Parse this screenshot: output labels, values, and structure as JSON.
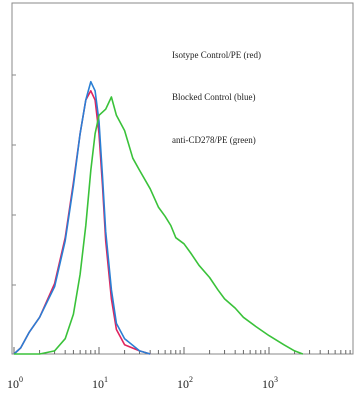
{
  "chart_data": {
    "type": "line",
    "title": "",
    "xlabel": "",
    "ylabel": "",
    "x_scale": "log",
    "xlim": [
      1,
      10000
    ],
    "ylim": [
      0,
      1
    ],
    "x_ticks": [
      {
        "base": "10",
        "exp": "0",
        "value": 1
      },
      {
        "base": "10",
        "exp": "1",
        "value": 10
      },
      {
        "base": "10",
        "exp": "2",
        "value": 100
      },
      {
        "base": "10",
        "exp": "3",
        "value": 1000
      }
    ],
    "legend": [
      "Isotype Control/PE (red)",
      "Blocked Control (blue)",
      "anti-CD278/PE (green)"
    ],
    "legend_placement": "top-right",
    "series": [
      {
        "name": "Isotype Control/PE (red)",
        "color": "#e0245e",
        "points": [
          [
            1,
            0.0
          ],
          [
            1.2,
            0.02
          ],
          [
            1.5,
            0.07
          ],
          [
            2,
            0.12
          ],
          [
            3,
            0.23
          ],
          [
            4,
            0.38
          ],
          [
            5,
            0.56
          ],
          [
            6,
            0.72
          ],
          [
            7,
            0.83
          ],
          [
            8,
            0.86
          ],
          [
            9,
            0.83
          ],
          [
            10,
            0.72
          ],
          [
            11,
            0.55
          ],
          [
            12,
            0.37
          ],
          [
            14,
            0.18
          ],
          [
            16,
            0.08
          ],
          [
            20,
            0.03
          ],
          [
            30,
            0.01
          ],
          [
            40,
            0.0
          ]
        ]
      },
      {
        "name": "Blocked Control (blue)",
        "color": "#2a7fd4",
        "points": [
          [
            1,
            0.0
          ],
          [
            1.2,
            0.02
          ],
          [
            1.5,
            0.07
          ],
          [
            2,
            0.12
          ],
          [
            3,
            0.22
          ],
          [
            4,
            0.37
          ],
          [
            5,
            0.55
          ],
          [
            6,
            0.72
          ],
          [
            7,
            0.83
          ],
          [
            8,
            0.89
          ],
          [
            9,
            0.86
          ],
          [
            10,
            0.76
          ],
          [
            11,
            0.58
          ],
          [
            12,
            0.4
          ],
          [
            14,
            0.21
          ],
          [
            16,
            0.1
          ],
          [
            20,
            0.05
          ],
          [
            30,
            0.01
          ],
          [
            40,
            0.0
          ]
        ]
      },
      {
        "name": "anti-CD278/PE (green)",
        "color": "#3ac23a",
        "points": [
          [
            1,
            0.0
          ],
          [
            2,
            0.0
          ],
          [
            3,
            0.01
          ],
          [
            4,
            0.05
          ],
          [
            5,
            0.13
          ],
          [
            6,
            0.26
          ],
          [
            7,
            0.42
          ],
          [
            8,
            0.6
          ],
          [
            9,
            0.72
          ],
          [
            10,
            0.78
          ],
          [
            12,
            0.8
          ],
          [
            14,
            0.84
          ],
          [
            16,
            0.78
          ],
          [
            20,
            0.73
          ],
          [
            25,
            0.64
          ],
          [
            30,
            0.6
          ],
          [
            40,
            0.54
          ],
          [
            50,
            0.48
          ],
          [
            60,
            0.45
          ],
          [
            70,
            0.42
          ],
          [
            80,
            0.38
          ],
          [
            100,
            0.36
          ],
          [
            120,
            0.33
          ],
          [
            150,
            0.29
          ],
          [
            200,
            0.25
          ],
          [
            250,
            0.21
          ],
          [
            300,
            0.18
          ],
          [
            400,
            0.15
          ],
          [
            500,
            0.12
          ],
          [
            700,
            0.09
          ],
          [
            1000,
            0.06
          ],
          [
            1500,
            0.03
          ],
          [
            2000,
            0.01
          ],
          [
            2500,
            0.0
          ]
        ]
      }
    ]
  }
}
